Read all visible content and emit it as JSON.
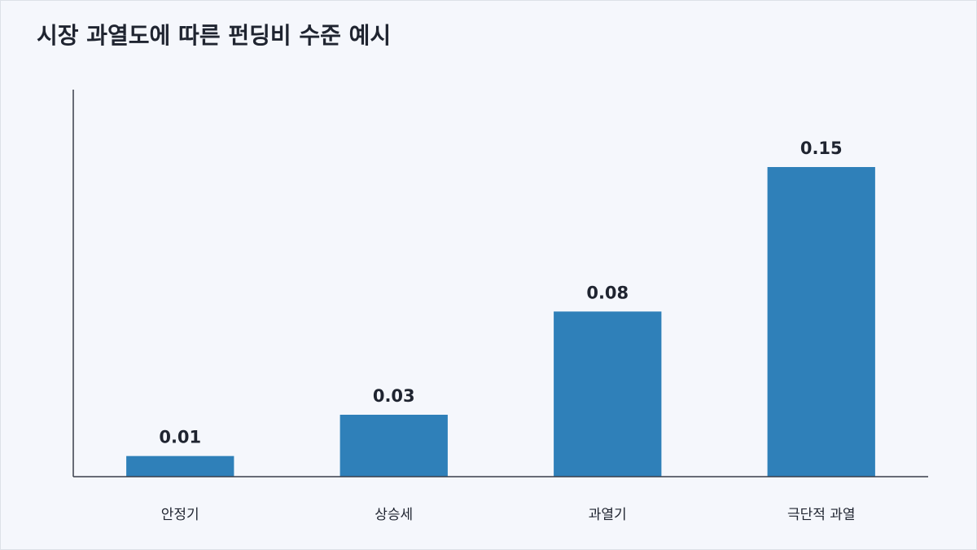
{
  "chart_data": {
    "type": "bar",
    "title": "시장 과열도에 따른 펀딩비 수준 예시",
    "categories": [
      "안정기",
      "상승세",
      "과열기",
      "극단적 과열"
    ],
    "values": [
      0.01,
      0.03,
      0.08,
      0.15
    ],
    "color": "#2f80b9",
    "ylim": [
      0,
      0.1875
    ]
  }
}
